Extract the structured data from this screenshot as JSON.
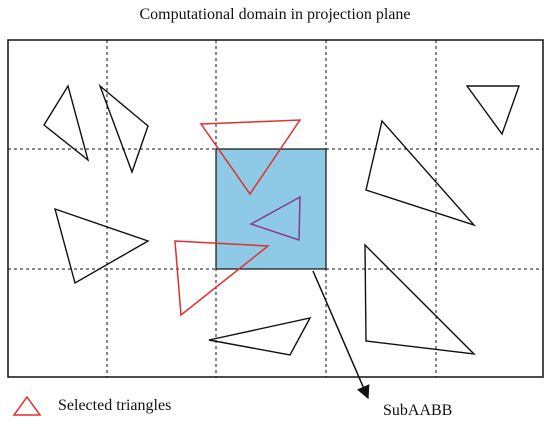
{
  "title": "Computational domain in projection plane",
  "legend": {
    "label": "Selected triangles",
    "color": "#e03030"
  },
  "subaabb": {
    "label": "SubAABB",
    "fill": "#8ecae6"
  },
  "colors": {
    "triangle": "#111111",
    "grid": "#111111",
    "overlap": "#8a3a8a"
  }
}
